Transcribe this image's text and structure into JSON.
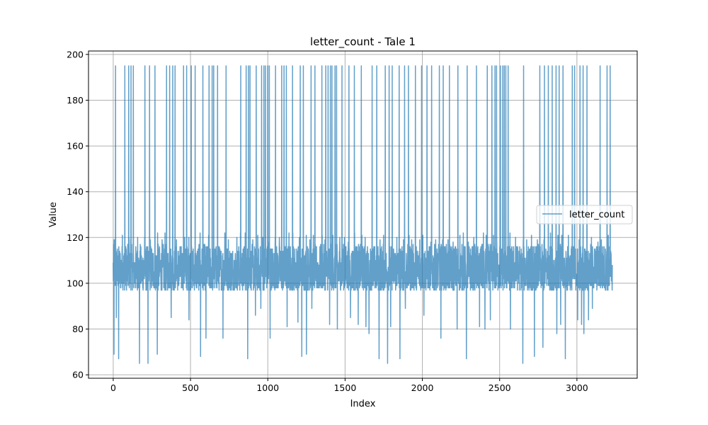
{
  "chart_data": {
    "type": "line",
    "title": "letter_count - Tale 1",
    "xlabel": "Index",
    "ylabel": "Value",
    "xlim": [
      -160,
      3390
    ],
    "ylim": [
      58.5,
      201.5
    ],
    "x_ticks": [
      0,
      500,
      1000,
      1500,
      2000,
      2500,
      3000
    ],
    "y_ticks": [
      60,
      80,
      100,
      120,
      140,
      160,
      180,
      200
    ],
    "grid": true,
    "legend_position": "center-right",
    "series": [
      {
        "name": "letter_count",
        "color": "#1f77b4",
        "alpha": 0.7,
        "n_points": 3230,
        "baseline_range": [
          97,
          117
        ],
        "spike_high_value": 195,
        "spike_high_x": [
          15,
          75,
          100,
          115,
          130,
          205,
          235,
          270,
          345,
          365,
          385,
          400,
          455,
          475,
          505,
          530,
          580,
          600,
          620,
          640,
          650,
          675,
          730,
          825,
          860,
          875,
          885,
          925,
          960,
          975,
          985,
          1000,
          1010,
          1050,
          1090,
          1105,
          1120,
          1160,
          1210,
          1230,
          1280,
          1305,
          1350,
          1375,
          1390,
          1400,
          1405,
          1415,
          1435,
          1445,
          1480,
          1525,
          1560,
          1605,
          1675,
          1705,
          1760,
          1785,
          1805,
          1850,
          1885,
          1910,
          1955,
          1995,
          2030,
          2060,
          2110,
          2135,
          2175,
          2230,
          2290,
          2350,
          2405,
          2420,
          2450,
          2470,
          2480,
          2505,
          2520,
          2530,
          2540,
          2555,
          2655,
          2760,
          2790,
          2815,
          2840,
          2865,
          2885,
          2910,
          2925,
          2970,
          2985,
          3005,
          3020,
          3040,
          3065,
          3150,
          3195,
          3215
        ],
        "spike_low": [
          [
            5,
            69
          ],
          [
            20,
            85
          ],
          [
            35,
            67
          ],
          [
            170,
            65
          ],
          [
            225,
            65
          ],
          [
            285,
            69
          ],
          [
            375,
            85
          ],
          [
            490,
            84
          ],
          [
            565,
            68
          ],
          [
            600,
            76
          ],
          [
            710,
            76
          ],
          [
            870,
            67
          ],
          [
            920,
            86
          ],
          [
            955,
            89
          ],
          [
            1015,
            76
          ],
          [
            1125,
            81
          ],
          [
            1195,
            83
          ],
          [
            1220,
            68
          ],
          [
            1250,
            69
          ],
          [
            1285,
            89
          ],
          [
            1400,
            82
          ],
          [
            1450,
            80
          ],
          [
            1535,
            85
          ],
          [
            1585,
            82
          ],
          [
            1635,
            81
          ],
          [
            1655,
            78
          ],
          [
            1720,
            67
          ],
          [
            1775,
            65
          ],
          [
            1795,
            81
          ],
          [
            1855,
            67
          ],
          [
            1890,
            89
          ],
          [
            2010,
            86
          ],
          [
            2120,
            76
          ],
          [
            2225,
            80
          ],
          [
            2285,
            67
          ],
          [
            2370,
            81
          ],
          [
            2405,
            80
          ],
          [
            2440,
            84
          ],
          [
            2570,
            80
          ],
          [
            2650,
            65
          ],
          [
            2725,
            68
          ],
          [
            2780,
            72
          ],
          [
            2870,
            78
          ],
          [
            2895,
            82
          ],
          [
            2925,
            67
          ],
          [
            3005,
            84
          ],
          [
            3030,
            82
          ],
          [
            3045,
            78
          ],
          [
            3075,
            84
          ],
          [
            3100,
            89
          ]
        ]
      }
    ]
  }
}
